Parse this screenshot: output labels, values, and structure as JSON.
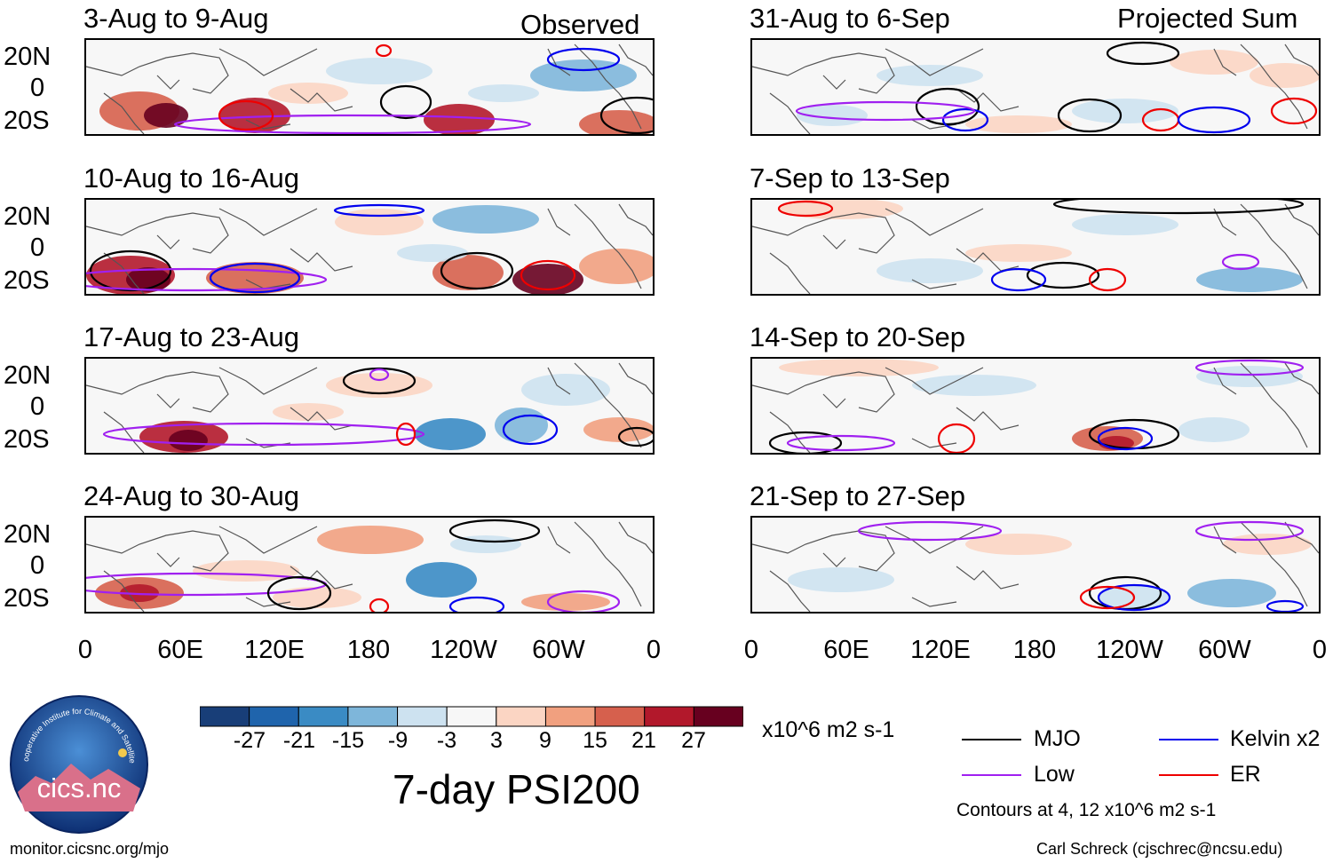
{
  "chart_data": {
    "type": "heatmap",
    "title": "7-day PSI200",
    "units": "x10^6 m2 s-1",
    "colorbar": {
      "ticks": [
        "-27",
        "-21",
        "-15",
        "-9",
        "-3",
        "3",
        "9",
        "15",
        "21",
        "27"
      ],
      "colors": [
        "#183e78",
        "#1f64ac",
        "#3a8bc4",
        "#7eb6da",
        "#cde2f0",
        "#f7f7f7",
        "#fbd5c3",
        "#f1a07f",
        "#d6604d",
        "#b2182b",
        "#67001f"
      ]
    },
    "columns": [
      {
        "label": "Observed",
        "panels": [
          "3-Aug to 9-Aug",
          "10-Aug to 16-Aug",
          "17-Aug to 23-Aug",
          "24-Aug to 30-Aug"
        ]
      },
      {
        "label": "Projected Sum",
        "panels": [
          "31-Aug to 6-Sep",
          "7-Sep to 13-Sep",
          "14-Sep to 20-Sep",
          "21-Sep to 27-Sep"
        ]
      }
    ],
    "y_ticks": [
      "20N",
      "0",
      "20S"
    ],
    "x_ticks": [
      "0",
      "60E",
      "120E",
      "180",
      "120W",
      "60W",
      "0"
    ],
    "legend": [
      {
        "name": "MJO",
        "color": "#000000"
      },
      {
        "name": "Kelvin x2",
        "color": "#0000ee"
      },
      {
        "name": "Low",
        "color": "#a020f0"
      },
      {
        "name": "ER",
        "color": "#ee0000"
      }
    ],
    "contour_note": "Contours at 4, 12 x10^6 m2 s-1"
  },
  "logo": {
    "text": "cics.nc",
    "ring_text": "Cooperative Institute for Climate and Satellites"
  },
  "footer": {
    "left": "monitor.cicsnc.org/mjo",
    "right": "Carl Schreck (cjschrec@ncsu.edu)"
  },
  "colors": {
    "mjo": "#000000",
    "kelvin": "#0000ee",
    "low": "#a020f0",
    "er": "#ee0000",
    "coast": "#555555"
  }
}
